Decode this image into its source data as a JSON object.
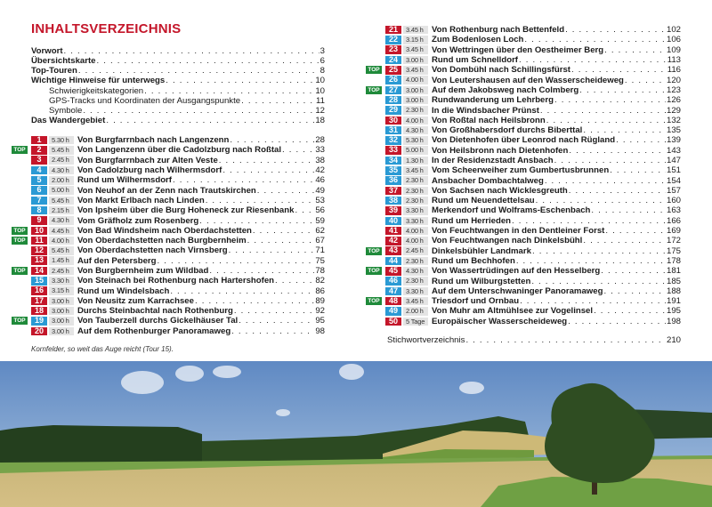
{
  "title": "INHALTSVERZEICHNIS",
  "intro": [
    {
      "label": "Vorwort",
      "page": "3",
      "sub": false
    },
    {
      "label": "Übersichtskarte",
      "page": "6",
      "sub": false
    },
    {
      "label": "Top-Touren",
      "page": "8",
      "sub": false
    },
    {
      "label": "Wichtige Hinweise für unterwegs",
      "page": "10",
      "sub": false
    },
    {
      "label": "Schwierigkeitskategorien",
      "page": "10",
      "sub": true
    },
    {
      "label": "GPS-Tracks und Koordinaten der Ausgangspunkte",
      "page": "11",
      "sub": true
    },
    {
      "label": "Symbole",
      "page": "12",
      "sub": true
    },
    {
      "label": "Das Wandergebiet",
      "page": "18",
      "sub": false
    }
  ],
  "top_label": "TOP",
  "colors": {
    "red": "#c4162a",
    "blue": "#2a9ad4",
    "top": "#1f8a3a",
    "title": "#c4162a"
  },
  "tours": [
    {
      "num": "1",
      "color": "red",
      "top": false,
      "duration": "5.30 h",
      "title": "Von Burgfarrnbach nach Langenzenn",
      "page": "28"
    },
    {
      "num": "2",
      "color": "red",
      "top": true,
      "duration": "5.45 h",
      "title": "Von Langenzenn über die Cadolzburg nach Roßtal",
      "page": "33"
    },
    {
      "num": "3",
      "color": "red",
      "top": false,
      "duration": "2.45 h",
      "title": "Von Burgfarrnbach zur Alten Veste",
      "page": "38"
    },
    {
      "num": "4",
      "color": "blue",
      "top": false,
      "duration": "4.30 h",
      "title": "Von Cadolzburg nach Wilhermsdorf",
      "page": "42"
    },
    {
      "num": "5",
      "color": "blue",
      "top": false,
      "duration": "2.00 h",
      "title": "Rund um Wilhermsdorf",
      "page": "46"
    },
    {
      "num": "6",
      "color": "blue",
      "top": false,
      "duration": "5.00 h",
      "title": "Von Neuhof an der Zenn nach Trautskirchen",
      "page": "49"
    },
    {
      "num": "7",
      "color": "blue",
      "top": false,
      "duration": "5.45 h",
      "title": "Von Markt Erlbach nach Linden",
      "page": "53"
    },
    {
      "num": "8",
      "color": "blue",
      "top": false,
      "duration": "2.15 h",
      "title": "Von Ipsheim über die Burg Hoheneck zur Riesenbank",
      "page": "56"
    },
    {
      "num": "9",
      "color": "red",
      "top": false,
      "duration": "4.30 h",
      "title": "Vom Gräfholz zum Rosenberg",
      "page": "59"
    },
    {
      "num": "10",
      "color": "red",
      "top": true,
      "duration": "4.45 h",
      "title": "Von Bad Windsheim nach Oberdachstetten",
      "page": "62"
    },
    {
      "num": "11",
      "color": "red",
      "top": true,
      "duration": "4.00 h",
      "title": "Von Oberdachstetten nach Burgbernheim",
      "page": "67"
    },
    {
      "num": "12",
      "color": "red",
      "top": false,
      "duration": "5.45 h",
      "title": "Von Oberdachstetten nach Virnsberg",
      "page": "71"
    },
    {
      "num": "13",
      "color": "red",
      "top": false,
      "duration": "1.45 h",
      "title": "Auf den Petersberg",
      "page": "75"
    },
    {
      "num": "14",
      "color": "red",
      "top": true,
      "duration": "2.45 h",
      "title": "Von Burgbernheim zum Wildbad",
      "page": "78"
    },
    {
      "num": "15",
      "color": "blue",
      "top": false,
      "duration": "3.30 h",
      "title": "Von Steinach bei Rothenburg nach Hartershofen",
      "page": "82"
    },
    {
      "num": "16",
      "color": "red",
      "top": false,
      "duration": "3.15 h",
      "title": "Rund um Windelsbach",
      "page": "86"
    },
    {
      "num": "17",
      "color": "red",
      "top": false,
      "duration": "3.00 h",
      "title": "Von Neusitz zum Karrachsee",
      "page": "89"
    },
    {
      "num": "18",
      "color": "red",
      "top": false,
      "duration": "3.00 h",
      "title": "Durchs Steinbachtal nach Rothenburg",
      "page": "92"
    },
    {
      "num": "19",
      "color": "blue",
      "top": true,
      "duration": "3.00 h",
      "title": "Von Tauberzell durchs Gickelhäuser Tal",
      "page": "95"
    },
    {
      "num": "20",
      "color": "red",
      "top": false,
      "duration": "3.00 h",
      "title": "Auf dem Rothenburger Panoramaweg",
      "page": "98"
    },
    {
      "num": "21",
      "color": "red",
      "top": false,
      "duration": "3.45 h",
      "title": "Von Rothenburg nach Bettenfeld",
      "page": "102"
    },
    {
      "num": "22",
      "color": "blue",
      "top": false,
      "duration": "3.15 h",
      "title": "Zum Bodenlosen Loch",
      "page": "106"
    },
    {
      "num": "23",
      "color": "red",
      "top": false,
      "duration": "3.45 h",
      "title": "Von Wettringen über den Oestheimer  Berg",
      "page": "109"
    },
    {
      "num": "24",
      "color": "blue",
      "top": false,
      "duration": "3.00 h",
      "title": "Rund um Schnelldorf",
      "page": "113"
    },
    {
      "num": "25",
      "color": "red",
      "top": true,
      "duration": "3.45 h",
      "title": "Von Dombühl nach Schillingsfürst",
      "page": "116"
    },
    {
      "num": "26",
      "color": "blue",
      "top": false,
      "duration": "4.00 h",
      "title": "Von Leutershausen auf den Wasserscheideweg",
      "page": "120"
    },
    {
      "num": "27",
      "color": "blue",
      "top": true,
      "duration": "3.00 h",
      "title": "Auf dem Jakobsweg nach Colmberg",
      "page": "123"
    },
    {
      "num": "28",
      "color": "blue",
      "top": false,
      "duration": "3.00 h",
      "title": "Rundwanderung um Lehrberg",
      "page": "126"
    },
    {
      "num": "29",
      "color": "blue",
      "top": false,
      "duration": "2.30 h",
      "title": "In die Windsbacher Prünst",
      "page": "129"
    },
    {
      "num": "30",
      "color": "red",
      "top": false,
      "duration": "4.00 h",
      "title": "Von Roßtal nach Heilsbronn",
      "page": "132"
    },
    {
      "num": "31",
      "color": "blue",
      "top": false,
      "duration": "4.30 h",
      "title": "Von Großhabersdorf durchs Biberttal",
      "page": "135"
    },
    {
      "num": "32",
      "color": "blue",
      "top": false,
      "duration": "5.30 h",
      "title": "Von Dietenhofen über Leonrod nach Rügland",
      "page": "139"
    },
    {
      "num": "33",
      "color": "red",
      "top": false,
      "duration": "5.00 h",
      "title": "Von Heilsbronn nach Dietenhofen",
      "page": "143"
    },
    {
      "num": "34",
      "color": "blue",
      "top": false,
      "duration": "1.30 h",
      "title": "In der Residenzstadt Ansbach",
      "page": "147"
    },
    {
      "num": "35",
      "color": "blue",
      "top": false,
      "duration": "3.45 h",
      "title": "Vom Scheerweiher zum Gumbertusbrunnen",
      "page": "151"
    },
    {
      "num": "36",
      "color": "blue",
      "top": false,
      "duration": "2.30 h",
      "title": "Ansbacher Dombachtalweg",
      "page": "154"
    },
    {
      "num": "37",
      "color": "red",
      "top": false,
      "duration": "2.30 h",
      "title": "Von Sachsen nach Wicklesgreuth",
      "page": "157"
    },
    {
      "num": "38",
      "color": "blue",
      "top": false,
      "duration": "2.30 h",
      "title": "Rund um Neuendettelsau",
      "page": "160"
    },
    {
      "num": "39",
      "color": "red",
      "top": false,
      "duration": "3.30 h",
      "title": "Merkendorf und Wolframs-Eschenbach",
      "page": "163"
    },
    {
      "num": "40",
      "color": "blue",
      "top": false,
      "duration": "3.30 h",
      "title": "Rund um Herrieden",
      "page": "166"
    },
    {
      "num": "41",
      "color": "red",
      "top": false,
      "duration": "4.00 h",
      "title": "Von Feuchtwangen in den Dentleiner Forst",
      "page": "169"
    },
    {
      "num": "42",
      "color": "red",
      "top": false,
      "duration": "4.00 h",
      "title": "Von Feuchtwangen nach Dinkelsbühl",
      "page": "172"
    },
    {
      "num": "43",
      "color": "red",
      "top": true,
      "duration": "2.45 h",
      "title": "Dinkelsbühler Landmark",
      "page": "175"
    },
    {
      "num": "44",
      "color": "blue",
      "top": false,
      "duration": "2.30 h",
      "title": "Rund um Bechhofen",
      "page": "178"
    },
    {
      "num": "45",
      "color": "red",
      "top": true,
      "duration": "4.30 h",
      "title": "Von Wassertrüdingen auf den Hesselberg",
      "page": "181"
    },
    {
      "num": "46",
      "color": "blue",
      "top": false,
      "duration": "2.30 h",
      "title": "Rund um Wilburgstetten",
      "page": "185"
    },
    {
      "num": "47",
      "color": "blue",
      "top": false,
      "duration": "3.30 h",
      "title": "Auf dem Unterschwaninger Panoramaweg",
      "page": "188"
    },
    {
      "num": "48",
      "color": "red",
      "top": true,
      "duration": "3.45 h",
      "title": "Triesdorf und Ornbau",
      "page": "191"
    },
    {
      "num": "49",
      "color": "blue",
      "top": false,
      "duration": "2.00 h",
      "title": "Von Muhr am Altmühlsee zur Vogelinsel",
      "page": "195"
    },
    {
      "num": "50",
      "color": "red",
      "top": false,
      "duration": "5 Tage",
      "title": "Europäischer Wasserscheideweg",
      "page": "198"
    }
  ],
  "index": {
    "label": "Stichwortverzeichnis",
    "page": "210"
  },
  "caption": "Kornfelder, so weit das Auge reicht (Tour 15)."
}
